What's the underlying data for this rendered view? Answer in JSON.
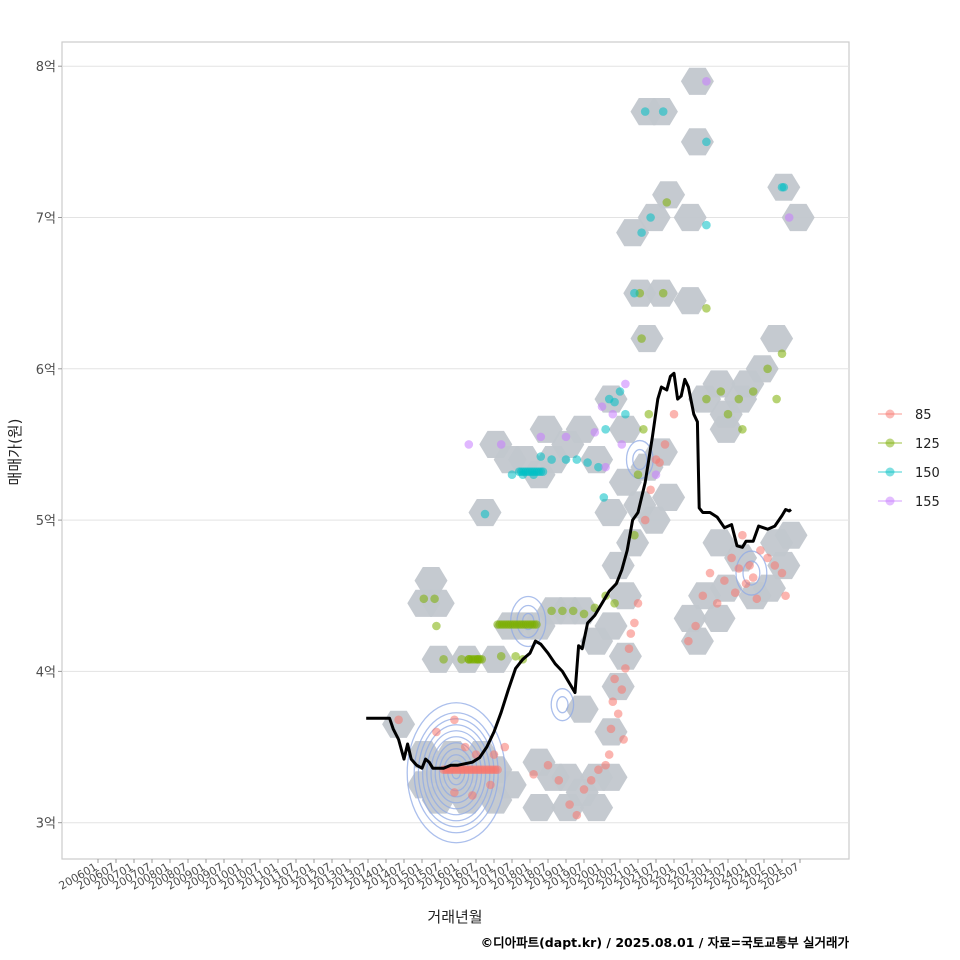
{
  "chart_data": {
    "type": "scatter",
    "title": "",
    "xlabel": "거래년월",
    "ylabel": "매매가(원)",
    "caption": "©디아파트(dapt.kr) / 2025.08.01 / 자료=국토교통부 실거래가",
    "ylim": [
      2.76,
      8.16
    ],
    "y_ticks": [
      {
        "value": 3,
        "label": "3억"
      },
      {
        "value": 4,
        "label": "4억"
      },
      {
        "value": 5,
        "label": "5억"
      },
      {
        "value": 6,
        "label": "6억"
      },
      {
        "value": 7,
        "label": "7억"
      },
      {
        "value": 8,
        "label": "8억"
      }
    ],
    "x_start": "2006-01",
    "x_end": "2025-07",
    "x_ticks": [
      "200601",
      "200607",
      "200701",
      "200707",
      "200801",
      "200807",
      "200901",
      "200907",
      "201001",
      "201007",
      "201101",
      "201107",
      "201201",
      "201207",
      "201301",
      "201307",
      "201401",
      "201407",
      "201501",
      "201507",
      "201601",
      "201607",
      "201701",
      "201707",
      "201801",
      "201807",
      "201901",
      "201907",
      "202001",
      "202007",
      "202101",
      "202107",
      "202201",
      "202207",
      "202301",
      "202307",
      "202401",
      "202407",
      "202501",
      "202507"
    ],
    "legend": {
      "position": "right",
      "entries": [
        {
          "label": "85",
          "color": "#F8766D"
        },
        {
          "label": "125",
          "color": "#7CAE00"
        },
        {
          "label": "150",
          "color": "#00BFC4"
        },
        {
          "label": "155",
          "color": "#C77CFF"
        }
      ]
    },
    "hex_color": "#c2c7cd",
    "contour_color": "#8fa9e6",
    "trend_line": {
      "name": "moving average",
      "color": "#000000",
      "points": [
        [
          2013.45,
          3.69
        ],
        [
          2014.1,
          3.69
        ],
        [
          2014.2,
          3.62
        ],
        [
          2014.35,
          3.55
        ],
        [
          2014.5,
          3.42
        ],
        [
          2014.6,
          3.52
        ],
        [
          2014.7,
          3.42
        ],
        [
          2014.85,
          3.38
        ],
        [
          2015.0,
          3.36
        ],
        [
          2015.1,
          3.42
        ],
        [
          2015.2,
          3.4
        ],
        [
          2015.3,
          3.36
        ],
        [
          2015.6,
          3.36
        ],
        [
          2015.8,
          3.38
        ],
        [
          2016.0,
          3.38
        ],
        [
          2016.4,
          3.4
        ],
        [
          2016.6,
          3.43
        ],
        [
          2016.8,
          3.5
        ],
        [
          2017.0,
          3.6
        ],
        [
          2017.2,
          3.73
        ],
        [
          2017.4,
          3.88
        ],
        [
          2017.6,
          4.02
        ],
        [
          2017.8,
          4.08
        ],
        [
          2018.0,
          4.12
        ],
        [
          2018.15,
          4.2
        ],
        [
          2018.3,
          4.18
        ],
        [
          2018.5,
          4.12
        ],
        [
          2018.7,
          4.05
        ],
        [
          2018.9,
          4.0
        ],
        [
          2019.1,
          3.92
        ],
        [
          2019.25,
          3.86
        ],
        [
          2019.35,
          4.17
        ],
        [
          2019.45,
          4.15
        ],
        [
          2019.6,
          4.32
        ],
        [
          2019.8,
          4.37
        ],
        [
          2020.0,
          4.45
        ],
        [
          2020.2,
          4.53
        ],
        [
          2020.4,
          4.58
        ],
        [
          2020.55,
          4.67
        ],
        [
          2020.7,
          4.8
        ],
        [
          2020.85,
          5.0
        ],
        [
          2021.0,
          5.05
        ],
        [
          2021.2,
          5.25
        ],
        [
          2021.4,
          5.55
        ],
        [
          2021.55,
          5.8
        ],
        [
          2021.65,
          5.88
        ],
        [
          2021.8,
          5.86
        ],
        [
          2021.9,
          5.95
        ],
        [
          2022.0,
          5.97
        ],
        [
          2022.1,
          5.8
        ],
        [
          2022.2,
          5.82
        ],
        [
          2022.3,
          5.93
        ],
        [
          2022.4,
          5.88
        ],
        [
          2022.55,
          5.7
        ],
        [
          2022.65,
          5.65
        ],
        [
          2022.7,
          5.08
        ],
        [
          2022.8,
          5.05
        ],
        [
          2023.0,
          5.05
        ],
        [
          2023.2,
          5.02
        ],
        [
          2023.4,
          4.95
        ],
        [
          2023.6,
          4.97
        ],
        [
          2023.75,
          4.83
        ],
        [
          2023.9,
          4.82
        ],
        [
          2024.0,
          4.86
        ],
        [
          2024.2,
          4.86
        ],
        [
          2024.35,
          4.96
        ],
        [
          2024.6,
          4.94
        ],
        [
          2024.8,
          4.96
        ],
        [
          2025.0,
          5.03
        ],
        [
          2025.1,
          5.07
        ],
        [
          2025.2,
          5.06
        ],
        [
          2025.25,
          5.07
        ]
      ]
    },
    "contours": [
      {
        "cx": 2015.95,
        "cy": 3.33,
        "rings": [
          0.3,
          0.6,
          0.9,
          1.2,
          1.5,
          1.8,
          2.1,
          2.4,
          2.7,
          3.0,
          3.5
        ]
      },
      {
        "cx": 2017.95,
        "cy": 4.33,
        "rings": [
          0.4,
          0.8,
          1.25
        ]
      },
      {
        "cx": 2018.9,
        "cy": 3.78,
        "rings": [
          0.4,
          0.8
        ]
      },
      {
        "cx": 2024.15,
        "cy": 4.65,
        "rings": [
          0.6,
          1.1
        ]
      },
      {
        "cx": 2021.05,
        "cy": 5.4,
        "rings": [
          0.5,
          0.95
        ]
      }
    ],
    "hexbins": [
      [
        2014.35,
        3.65
      ],
      [
        2015.05,
        3.45
      ],
      [
        2015.45,
        3.35
      ],
      [
        2015.85,
        3.45
      ],
      [
        2016.25,
        3.35
      ],
      [
        2016.65,
        3.45
      ],
      [
        2017.05,
        3.35
      ],
      [
        2015.45,
        3.15
      ],
      [
        2016.25,
        3.15
      ],
      [
        2017.05,
        3.15
      ],
      [
        2015.05,
        3.25
      ],
      [
        2015.85,
        3.25
      ],
      [
        2016.65,
        3.25
      ],
      [
        2017.45,
        3.25
      ],
      [
        2015.25,
        4.6
      ],
      [
        2015.45,
        4.45
      ],
      [
        2015.05,
        4.45
      ],
      [
        2015.45,
        4.08
      ],
      [
        2016.25,
        4.08
      ],
      [
        2017.05,
        4.08
      ],
      [
        2017.45,
        4.3
      ],
      [
        2017.85,
        4.3
      ],
      [
        2018.25,
        4.3
      ],
      [
        2016.75,
        5.05
      ],
      [
        2017.05,
        5.5
      ],
      [
        2017.45,
        5.4
      ],
      [
        2017.85,
        5.4
      ],
      [
        2018.25,
        5.3
      ],
      [
        2018.65,
        5.4
      ],
      [
        2018.45,
        5.6
      ],
      [
        2019.05,
        5.5
      ],
      [
        2019.45,
        5.6
      ],
      [
        2019.85,
        5.4
      ],
      [
        2020.25,
        5.8
      ],
      [
        2020.65,
        5.6
      ],
      [
        2018.65,
        4.4
      ],
      [
        2019.05,
        4.4
      ],
      [
        2019.45,
        4.4
      ],
      [
        2019.85,
        4.2
      ],
      [
        2019.45,
        3.75
      ],
      [
        2018.25,
        3.4
      ],
      [
        2018.65,
        3.3
      ],
      [
        2019.05,
        3.3
      ],
      [
        2019.45,
        3.2
      ],
      [
        2019.85,
        3.3
      ],
      [
        2020.25,
        3.3
      ],
      [
        2018.25,
        3.1
      ],
      [
        2019.05,
        3.1
      ],
      [
        2019.85,
        3.1
      ],
      [
        2020.25,
        3.6
      ],
      [
        2020.45,
        3.9
      ],
      [
        2020.65,
        4.1
      ],
      [
        2020.25,
        4.3
      ],
      [
        2020.65,
        4.5
      ],
      [
        2020.45,
        4.7
      ],
      [
        2020.85,
        4.85
      ],
      [
        2020.25,
        5.05
      ],
      [
        2020.65,
        5.25
      ],
      [
        2021.05,
        5.1
      ],
      [
        2021.45,
        5.0
      ],
      [
        2021.85,
        5.15
      ],
      [
        2021.25,
        5.35
      ],
      [
        2021.65,
        5.45
      ],
      [
        2021.25,
        6.2
      ],
      [
        2021.05,
        6.5
      ],
      [
        2021.65,
        6.5
      ],
      [
        2020.85,
        6.9
      ],
      [
        2021.45,
        7.0
      ],
      [
        2021.85,
        7.15
      ],
      [
        2021.25,
        7.7
      ],
      [
        2021.65,
        7.7
      ],
      [
        2022.65,
        7.9
      ],
      [
        2022.65,
        7.5
      ],
      [
        2022.45,
        7.0
      ],
      [
        2022.45,
        6.45
      ],
      [
        2022.85,
        5.8
      ],
      [
        2023.25,
        5.9
      ],
      [
        2023.45,
        5.7
      ],
      [
        2023.85,
        5.8
      ],
      [
        2023.45,
        5.6
      ],
      [
        2024.05,
        5.9
      ],
      [
        2024.45,
        6.0
      ],
      [
        2024.85,
        6.2
      ],
      [
        2025.05,
        7.2
      ],
      [
        2025.45,
        7.0
      ],
      [
        2022.45,
        4.35
      ],
      [
        2022.85,
        4.5
      ],
      [
        2022.65,
        4.2
      ],
      [
        2023.25,
        4.35
      ],
      [
        2023.45,
        4.55
      ],
      [
        2023.85,
        4.75
      ],
      [
        2024.25,
        4.5
      ],
      [
        2024.65,
        4.55
      ],
      [
        2025.05,
        4.7
      ],
      [
        2025.25,
        4.9
      ],
      [
        2024.85,
        4.85
      ],
      [
        2023.25,
        4.85
      ]
    ],
    "scatter_groups": [
      {
        "label": "85",
        "points": [
          [
            2014.35,
            3.68
          ],
          [
            2015.4,
            3.6
          ],
          [
            2015.9,
            3.68
          ],
          [
            2016.2,
            3.5
          ],
          [
            2016.5,
            3.45
          ],
          [
            2017.0,
            3.45
          ],
          [
            2017.3,
            3.5
          ],
          [
            2015.9,
            3.2
          ],
          [
            2016.4,
            3.18
          ],
          [
            2016.9,
            3.25
          ],
          [
            2018.1,
            3.32
          ],
          [
            2018.5,
            3.38
          ],
          [
            2018.8,
            3.28
          ],
          [
            2019.1,
            3.12
          ],
          [
            2019.3,
            3.05
          ],
          [
            2019.5,
            3.22
          ],
          [
            2019.7,
            3.28
          ],
          [
            2019.9,
            3.35
          ],
          [
            2020.1,
            3.38
          ],
          [
            2020.2,
            3.45
          ],
          [
            2020.25,
            3.62
          ],
          [
            2020.3,
            3.8
          ],
          [
            2020.35,
            3.95
          ],
          [
            2020.45,
            3.72
          ],
          [
            2020.55,
            3.88
          ],
          [
            2020.65,
            4.02
          ],
          [
            2020.75,
            4.15
          ],
          [
            2020.8,
            4.25
          ],
          [
            2020.9,
            4.32
          ],
          [
            2021.0,
            4.45
          ],
          [
            2020.6,
            3.55
          ],
          [
            2021.2,
            5.0
          ],
          [
            2021.35,
            5.2
          ],
          [
            2021.5,
            5.4
          ],
          [
            2021.6,
            5.38
          ],
          [
            2021.75,
            5.5
          ],
          [
            2022.0,
            5.7
          ],
          [
            2022.4,
            4.2
          ],
          [
            2022.6,
            4.3
          ],
          [
            2022.8,
            4.5
          ],
          [
            2023.0,
            4.65
          ],
          [
            2023.2,
            4.45
          ],
          [
            2023.4,
            4.6
          ],
          [
            2023.6,
            4.75
          ],
          [
            2023.8,
            4.68
          ],
          [
            2024.0,
            4.58
          ],
          [
            2024.2,
            4.62
          ],
          [
            2024.4,
            4.8
          ],
          [
            2024.6,
            4.75
          ],
          [
            2024.8,
            4.7
          ],
          [
            2024.3,
            4.48
          ],
          [
            2023.9,
            4.9
          ],
          [
            2025.0,
            4.65
          ],
          [
            2025.1,
            4.5
          ],
          [
            2024.1,
            4.7
          ],
          [
            2023.7,
            4.52
          ]
        ]
      },
      {
        "label": "125",
        "points": [
          [
            2015.05,
            4.48
          ],
          [
            2015.35,
            4.48
          ],
          [
            2015.4,
            4.3
          ],
          [
            2015.6,
            4.08
          ],
          [
            2016.1,
            4.08
          ],
          [
            2016.3,
            4.08
          ],
          [
            2016.55,
            4.08
          ],
          [
            2017.2,
            4.1
          ],
          [
            2017.6,
            4.1
          ],
          [
            2017.8,
            4.08
          ],
          [
            2018.6,
            4.4
          ],
          [
            2018.9,
            4.4
          ],
          [
            2019.2,
            4.4
          ],
          [
            2019.5,
            4.38
          ],
          [
            2019.8,
            4.42
          ],
          [
            2020.1,
            4.5
          ],
          [
            2020.35,
            4.45
          ],
          [
            2020.9,
            4.9
          ],
          [
            2021.0,
            5.3
          ],
          [
            2021.15,
            5.6
          ],
          [
            2021.3,
            5.7
          ],
          [
            2021.1,
            6.2
          ],
          [
            2021.05,
            6.5
          ],
          [
            2021.7,
            6.5
          ],
          [
            2021.8,
            7.1
          ],
          [
            2022.9,
            6.4
          ],
          [
            2022.9,
            5.8
          ],
          [
            2023.3,
            5.85
          ],
          [
            2023.5,
            5.7
          ],
          [
            2023.8,
            5.8
          ],
          [
            2023.9,
            5.6
          ],
          [
            2024.2,
            5.85
          ],
          [
            2024.6,
            6.0
          ],
          [
            2025.0,
            6.1
          ],
          [
            2024.85,
            5.8
          ]
        ]
      },
      {
        "label": "150",
        "points": [
          [
            2016.75,
            5.04
          ],
          [
            2017.5,
            5.3
          ],
          [
            2017.8,
            5.3
          ],
          [
            2018.1,
            5.3
          ],
          [
            2018.3,
            5.42
          ],
          [
            2018.6,
            5.4
          ],
          [
            2019.0,
            5.4
          ],
          [
            2019.3,
            5.4
          ],
          [
            2019.6,
            5.38
          ],
          [
            2019.9,
            5.35
          ],
          [
            2020.05,
            5.15
          ],
          [
            2020.1,
            5.6
          ],
          [
            2020.2,
            5.8
          ],
          [
            2020.35,
            5.78
          ],
          [
            2020.5,
            5.85
          ],
          [
            2020.65,
            5.7
          ],
          [
            2020.9,
            6.5
          ],
          [
            2021.1,
            6.9
          ],
          [
            2021.2,
            7.7
          ],
          [
            2021.7,
            7.7
          ],
          [
            2021.35,
            7.0
          ],
          [
            2022.9,
            6.95
          ],
          [
            2022.9,
            7.5
          ],
          [
            2025.0,
            7.2
          ],
          [
            2025.05,
            7.2
          ]
        ]
      },
      {
        "label": "155",
        "points": [
          [
            2016.3,
            5.5
          ],
          [
            2017.2,
            5.5
          ],
          [
            2018.3,
            5.55
          ],
          [
            2019.0,
            5.55
          ],
          [
            2019.8,
            5.58
          ],
          [
            2020.1,
            5.35
          ],
          [
            2020.3,
            5.7
          ],
          [
            2020.55,
            5.5
          ],
          [
            2020.65,
            5.9
          ],
          [
            2022.9,
            7.9
          ],
          [
            2025.2,
            7.0
          ],
          [
            2021.5,
            5.3
          ],
          [
            2020.0,
            5.75
          ]
        ]
      }
    ]
  }
}
